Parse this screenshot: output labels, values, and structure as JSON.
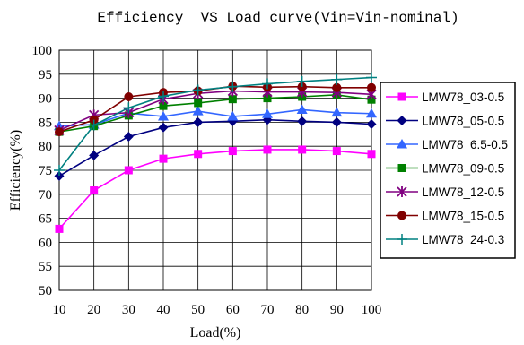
{
  "chart_data": {
    "type": "line",
    "title": "Efficiency  VS Load curve(Vin=Vin-nominal)",
    "xlabel": "Load(%)",
    "ylabel": "Efficiency(%)",
    "x": [
      10,
      20,
      30,
      40,
      50,
      60,
      70,
      80,
      90,
      100
    ],
    "x_ticks": [
      "10",
      "20",
      "30",
      "40",
      "50",
      "60",
      "70",
      "80",
      "90",
      "100"
    ],
    "ylim": [
      50,
      100
    ],
    "y_ticks": [
      "50",
      "55",
      "60",
      "65",
      "70",
      "75",
      "80",
      "85",
      "90",
      "95",
      "100"
    ],
    "grid": true,
    "legend_position": "right",
    "series": [
      {
        "name": "LMW78_03-0.5",
        "color": "#ff00ff",
        "marker": "square",
        "values": [
          62.8,
          70.8,
          75.0,
          77.4,
          78.4,
          79.0,
          79.3,
          79.3,
          79.0,
          78.4
        ]
      },
      {
        "name": "LMW78_05-0.5",
        "color": "#000080",
        "marker": "diamond",
        "values": [
          73.8,
          78.1,
          82.0,
          83.9,
          85.0,
          85.2,
          85.5,
          85.2,
          85.0,
          84.6
        ]
      },
      {
        "name": "LMW78_6.5-0.5",
        "color": "#3366ff",
        "marker": "triangle",
        "values": [
          84.2,
          84.5,
          86.9,
          86.2,
          87.3,
          86.2,
          86.7,
          87.6,
          87.0,
          86.8
        ]
      },
      {
        "name": "LMW78_09-0.5",
        "color": "#008000",
        "marker": "square",
        "values": [
          83.0,
          84.2,
          86.4,
          88.4,
          89.0,
          89.8,
          90.0,
          90.3,
          90.7,
          89.7
        ]
      },
      {
        "name": "LMW78_12-0.5",
        "color": "#800080",
        "marker": "star",
        "values": [
          83.3,
          86.5,
          87.0,
          89.8,
          91.0,
          91.5,
          91.3,
          91.3,
          91.2,
          90.8
        ]
      },
      {
        "name": "LMW78_15-0.5",
        "color": "#800000",
        "marker": "circle",
        "values": [
          83.0,
          85.5,
          90.3,
          91.2,
          91.5,
          92.5,
          92.3,
          92.4,
          92.2,
          92.2
        ]
      },
      {
        "name": "LMW78_24-0.3",
        "color": "#008080",
        "marker": "plus",
        "values": [
          75.0,
          84.4,
          88.0,
          90.4,
          91.7,
          92.4,
          93.0,
          93.5,
          93.9,
          94.3
        ]
      }
    ]
  }
}
